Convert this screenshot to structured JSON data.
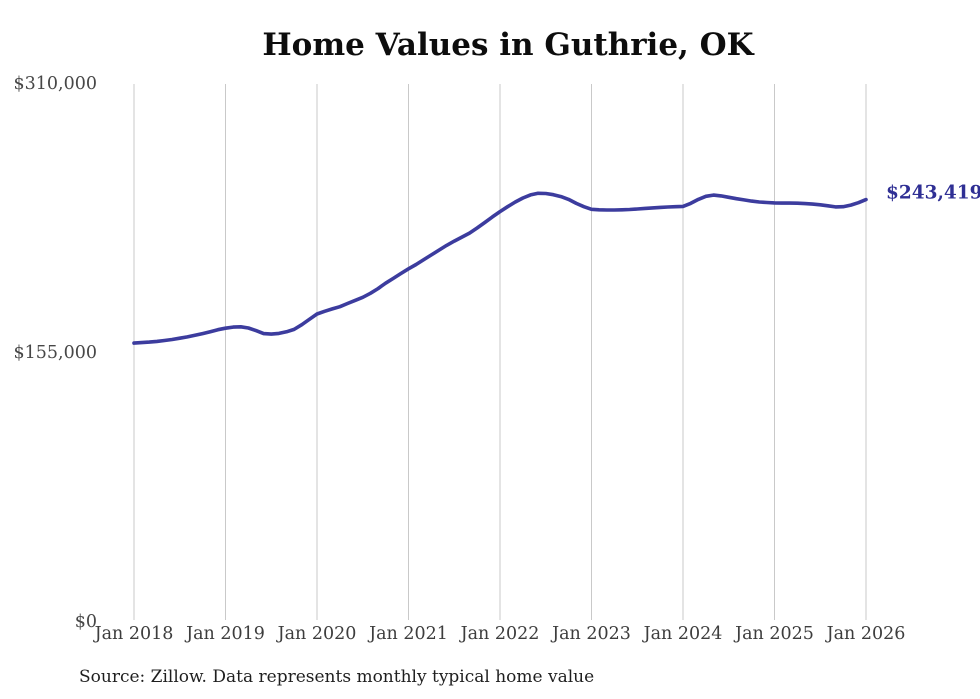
{
  "title": "Home Values in Guthrie, OK",
  "end_label": "$243,419",
  "source": "Source: Zillow. Data represents monthly typical home value",
  "colors": {
    "line": "#3c3c9e",
    "end_label": "#2f2f94",
    "gridline": "#c9c9c9"
  },
  "chart_data": {
    "type": "line",
    "title": "Home Values in Guthrie, OK",
    "xlabel": "",
    "ylabel": "",
    "frequency": "monthly",
    "x_start": "Jan 2018",
    "x_end": "Jan 2026",
    "x_tick_labels": [
      "Jan 2018",
      "Jan 2019",
      "Jan 2020",
      "Jan 2021",
      "Jan 2022",
      "Jan 2023",
      "Jan 2024",
      "Jan 2025",
      "Jan 2026"
    ],
    "y_tick_labels": [
      "$310,000",
      "$155,000",
      "$0"
    ],
    "y_tick_values": [
      310000,
      155000,
      0
    ],
    "ylim": [
      0,
      310000
    ],
    "grid": "vertical-only",
    "legend": "none",
    "end_value": 243419,
    "series": [
      {
        "name": "Typical home value",
        "values": [
          160700,
          161000,
          161300,
          161700,
          162200,
          162800,
          163500,
          164300,
          165200,
          166200,
          167300,
          168400,
          169300,
          169900,
          170100,
          169400,
          167900,
          166200,
          165900,
          166300,
          167200,
          168600,
          171300,
          174400,
          177500,
          179000,
          180400,
          181700,
          183500,
          185300,
          187100,
          189400,
          192100,
          195200,
          198000,
          200800,
          203500,
          206000,
          208800,
          211500,
          214300,
          217000,
          219500,
          221800,
          224100,
          227000,
          230200,
          233400,
          236500,
          239300,
          242000,
          244300,
          246100,
          247000,
          246900,
          246200,
          245100,
          243500,
          241200,
          239300,
          237800,
          237500,
          237400,
          237400,
          237500,
          237700,
          238000,
          238300,
          238600,
          238900,
          239100,
          239300,
          239500,
          241200,
          243500,
          245300,
          246000,
          245500,
          244700,
          243900,
          243200,
          242500,
          242000,
          241700,
          241500,
          241400,
          241400,
          241300,
          241100,
          240800,
          240400,
          239800,
          239200,
          239300,
          240200,
          241600,
          243419
        ]
      }
    ]
  }
}
